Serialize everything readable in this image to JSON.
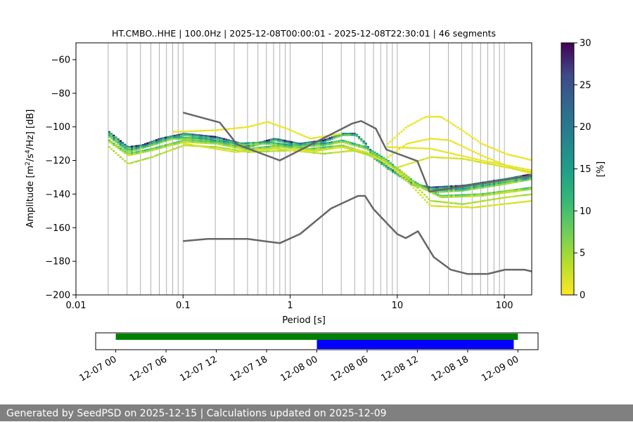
{
  "chart_data": [
    {
      "type": "heatmap",
      "title": "HT.CMBO..HHE | 100.0Hz | 2025-12-08T00:00:01 - 2025-12-08T22:30:01 | 46 segments",
      "xlabel": "Period [s]",
      "ylabel_parts": {
        "base": "Amplitude [m",
        "sup1": "2",
        "mid": "/s",
        "sup2": "4",
        "tail": "/Hz] [dB]"
      },
      "x_scale": "log",
      "xlim": [
        0.01,
        180
      ],
      "ylim": [
        -200,
        -50
      ],
      "x_ticks": [
        {
          "value": 0.01,
          "label": "0.01"
        },
        {
          "value": 0.1,
          "label": "0.1"
        },
        {
          "value": 1,
          "label": "1"
        },
        {
          "value": 10,
          "label": "10"
        },
        {
          "value": 100,
          "label": "100"
        }
      ],
      "y_ticks": [
        {
          "value": -60,
          "label": "−60"
        },
        {
          "value": -80,
          "label": "−80"
        },
        {
          "value": -100,
          "label": "−100"
        },
        {
          "value": -120,
          "label": "−120"
        },
        {
          "value": -140,
          "label": "−140"
        },
        {
          "value": -160,
          "label": "−160"
        },
        {
          "value": -180,
          "label": "−180"
        },
        {
          "value": -200,
          "label": "−200"
        }
      ],
      "grid": "vertical-log",
      "colormap": "viridis",
      "colorbar": {
        "label": "[%]",
        "range": [
          0,
          30
        ],
        "ticks": [
          {
            "value": 0,
            "label": "0"
          },
          {
            "value": 5,
            "label": "5"
          },
          {
            "value": 10,
            "label": "10"
          },
          {
            "value": 15,
            "label": "15"
          },
          {
            "value": 20,
            "label": "20"
          },
          {
            "value": 25,
            "label": "25"
          },
          {
            "value": 30,
            "label": "30"
          }
        ]
      },
      "psd_bands": [
        {
          "points": [
            [
              0.02,
              -103
            ],
            [
              0.025,
              -108
            ],
            [
              0.03,
              -112
            ],
            [
              0.04,
              -111
            ],
            [
              0.06,
              -107
            ],
            [
              0.1,
              -104
            ],
            [
              0.2,
              -106
            ],
            [
              0.4,
              -111
            ],
            [
              0.7,
              -107
            ],
            [
              1.2,
              -110
            ],
            [
              2,
              -108
            ],
            [
              3,
              -104
            ],
            [
              4,
              -104
            ],
            [
              5,
              -110
            ],
            [
              6,
              -118
            ],
            [
              8,
              -124
            ],
            [
              10,
              -128
            ],
            [
              14,
              -134
            ],
            [
              20,
              -136
            ],
            [
              40,
              -135
            ],
            [
              100,
              -131
            ],
            [
              180,
              -128
            ]
          ],
          "pct": 22
        },
        {
          "points": [
            [
              0.02,
              -105
            ],
            [
              0.025,
              -110
            ],
            [
              0.03,
              -114
            ],
            [
              0.05,
              -110
            ],
            [
              0.08,
              -106
            ],
            [
              0.15,
              -107
            ],
            [
              0.3,
              -110
            ],
            [
              0.6,
              -109
            ],
            [
              1,
              -111
            ],
            [
              2,
              -110
            ],
            [
              3,
              -108
            ],
            [
              5,
              -112
            ],
            [
              8,
              -120
            ],
            [
              12,
              -130
            ],
            [
              20,
              -138
            ],
            [
              40,
              -137
            ],
            [
              100,
              -133
            ],
            [
              180,
              -130
            ]
          ],
          "pct": 13
        },
        {
          "points": [
            [
              0.02,
              -108
            ],
            [
              0.03,
              -116
            ],
            [
              0.05,
              -113
            ],
            [
              0.1,
              -108
            ],
            [
              0.2,
              -109
            ],
            [
              0.4,
              -113
            ],
            [
              0.8,
              -111
            ],
            [
              1.5,
              -113
            ],
            [
              3,
              -111
            ],
            [
              6,
              -117
            ],
            [
              10,
              -125
            ],
            [
              15,
              -134
            ],
            [
              25,
              -141
            ],
            [
              60,
              -140
            ],
            [
              180,
              -136
            ]
          ],
          "pct": 8
        },
        {
          "points": [
            [
              0.02,
              -112
            ],
            [
              0.03,
              -122
            ],
            [
              0.05,
              -118
            ],
            [
              0.1,
              -111
            ],
            [
              0.2,
              -112
            ],
            [
              0.4,
              -115
            ],
            [
              1,
              -114
            ],
            [
              2,
              -116
            ],
            [
              4,
              -114
            ],
            [
              7,
              -120
            ],
            [
              12,
              -130
            ],
            [
              20,
              -144
            ],
            [
              40,
              -146
            ],
            [
              100,
              -142
            ],
            [
              180,
              -140
            ]
          ],
          "pct": 4
        },
        {
          "points": [
            [
              0.08,
              -103
            ],
            [
              0.2,
              -102
            ],
            [
              0.4,
              -100
            ],
            [
              0.6,
              -97
            ],
            [
              0.9,
              -101
            ],
            [
              1.5,
              -107
            ],
            [
              3,
              -104
            ]
          ],
          "pct": 1
        },
        {
          "points": [
            [
              0.1,
              -110
            ],
            [
              0.3,
              -115
            ],
            [
              0.7,
              -113
            ],
            [
              1.5,
              -115
            ],
            [
              3,
              -112
            ],
            [
              5,
              -115
            ],
            [
              8,
              -122
            ],
            [
              12,
              -132
            ],
            [
              20,
              -147
            ],
            [
              50,
              -148
            ],
            [
              180,
              -144
            ]
          ],
          "pct": 2
        },
        {
          "points": [
            [
              8,
              -110
            ],
            [
              12,
              -100
            ],
            [
              18,
              -94
            ],
            [
              25,
              -94
            ],
            [
              35,
              -100
            ],
            [
              60,
              -110
            ],
            [
              100,
              -116
            ],
            [
              180,
              -120
            ]
          ],
          "pct": 1
        },
        {
          "points": [
            [
              8,
              -118
            ],
            [
              12,
              -110
            ],
            [
              20,
              -107
            ],
            [
              30,
              -108
            ],
            [
              60,
              -117
            ],
            [
              120,
              -125
            ],
            [
              180,
              -128
            ]
          ],
          "pct": 1
        },
        {
          "points": [
            [
              10,
              -124
            ],
            [
              20,
              -118
            ],
            [
              40,
              -119
            ],
            [
              100,
              -124
            ],
            [
              180,
              -127
            ]
          ],
          "pct": 2
        },
        {
          "points": [
            [
              8,
              -112
            ],
            [
              20,
              -113
            ],
            [
              60,
              -120
            ],
            [
              180,
              -126
            ]
          ],
          "pct": 1
        }
      ],
      "noise_model_high": [
        [
          0.1,
          -91.5
        ],
        [
          0.22,
          -97.4
        ],
        [
          0.32,
          -110.5
        ],
        [
          0.8,
          -120
        ],
        [
          3.8,
          -98
        ],
        [
          4.6,
          -96.5
        ],
        [
          6.3,
          -101
        ],
        [
          7.9,
          -113.5
        ],
        [
          15.4,
          -120.3
        ],
        [
          20,
          -138.5
        ],
        [
          180,
          -129
        ]
      ],
      "noise_model_low": [
        [
          0.1,
          -168
        ],
        [
          0.17,
          -166.7
        ],
        [
          0.4,
          -166.7
        ],
        [
          0.8,
          -169.2
        ],
        [
          1.24,
          -163.7
        ],
        [
          2.4,
          -148.6
        ],
        [
          4.3,
          -141.1
        ],
        [
          5.0,
          -141.1
        ],
        [
          6.0,
          -149
        ],
        [
          10,
          -163.8
        ],
        [
          12,
          -166.2
        ],
        [
          15.6,
          -162.1
        ],
        [
          21.9,
          -177.5
        ],
        [
          31.6,
          -185
        ],
        [
          45,
          -187.5
        ],
        [
          70,
          -187.5
        ],
        [
          101,
          -185
        ],
        [
          154,
          -185
        ],
        [
          180,
          -186
        ]
      ],
      "noise_model_color": "#666666"
    },
    {
      "type": "timeline",
      "x_ticks": [
        "12-07 00",
        "12-07 06",
        "12-07 12",
        "12-07 18",
        "12-08 00",
        "12-08 06",
        "12-08 12",
        "12-08 18",
        "12-09 00"
      ],
      "x_range_hours": [
        -2.4,
        50.4
      ],
      "bars": [
        {
          "start_hours": 0,
          "end_hours": 48,
          "color": "#008000"
        },
        {
          "start_hours": 24,
          "end_hours": 47.5,
          "color": "#0000ff"
        }
      ]
    }
  ],
  "footer": {
    "text": "Generated by SeedPSD on 2025-12-15 | Calculations updated on 2025-12-09"
  }
}
